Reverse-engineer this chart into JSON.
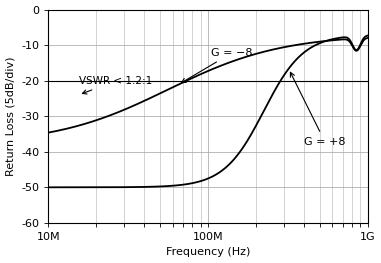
{
  "title": "",
  "xlabel": "Frequency (Hz)",
  "ylabel": "Return Loss (5dB/div)",
  "xlim_log": [
    10000000.0,
    1000000000.0
  ],
  "ylim": [
    -60,
    0
  ],
  "yticks": [
    0,
    -10,
    -20,
    -30,
    -40,
    -50,
    -60
  ],
  "xtick_labels": [
    "10M",
    "100M",
    "1G"
  ],
  "xtick_positions": [
    10000000.0,
    100000000.0,
    1000000000.0
  ],
  "line_color": "#000000",
  "background_color": "#ffffff",
  "grid_color": "#b0b0b0",
  "g_neg8_start": -38,
  "g_neg8_end": -7,
  "g_pos8_start": -50,
  "g_pos8_end": -7,
  "vswr_line_y": -20
}
